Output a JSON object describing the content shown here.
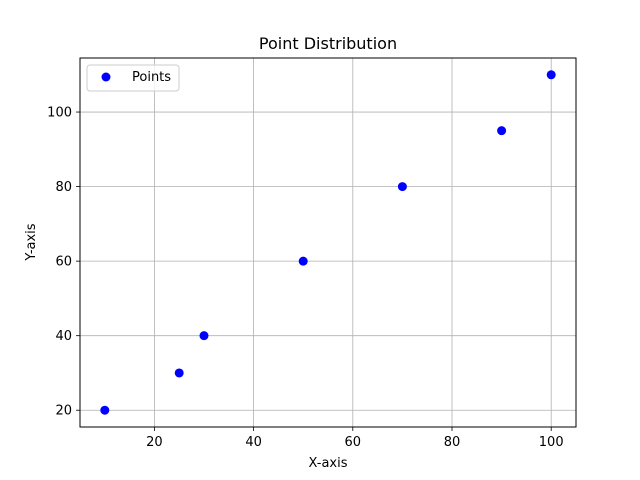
{
  "chart_data": {
    "type": "scatter",
    "title": "Point Distribution",
    "xlabel": "X-axis",
    "ylabel": "Y-axis",
    "xlim": [
      5,
      105
    ],
    "ylim": [
      15.5,
      114.5
    ],
    "x_ticks": [
      20,
      40,
      60,
      80,
      100
    ],
    "y_ticks": [
      20,
      40,
      60,
      80,
      100
    ],
    "grid": true,
    "legend_position": "top-left",
    "series": [
      {
        "name": "Points",
        "color": "#0000ff",
        "marker": "circle",
        "x": [
          10,
          25,
          30,
          50,
          70,
          90,
          100
        ],
        "y": [
          20,
          30,
          40,
          60,
          80,
          95,
          110
        ]
      }
    ]
  }
}
